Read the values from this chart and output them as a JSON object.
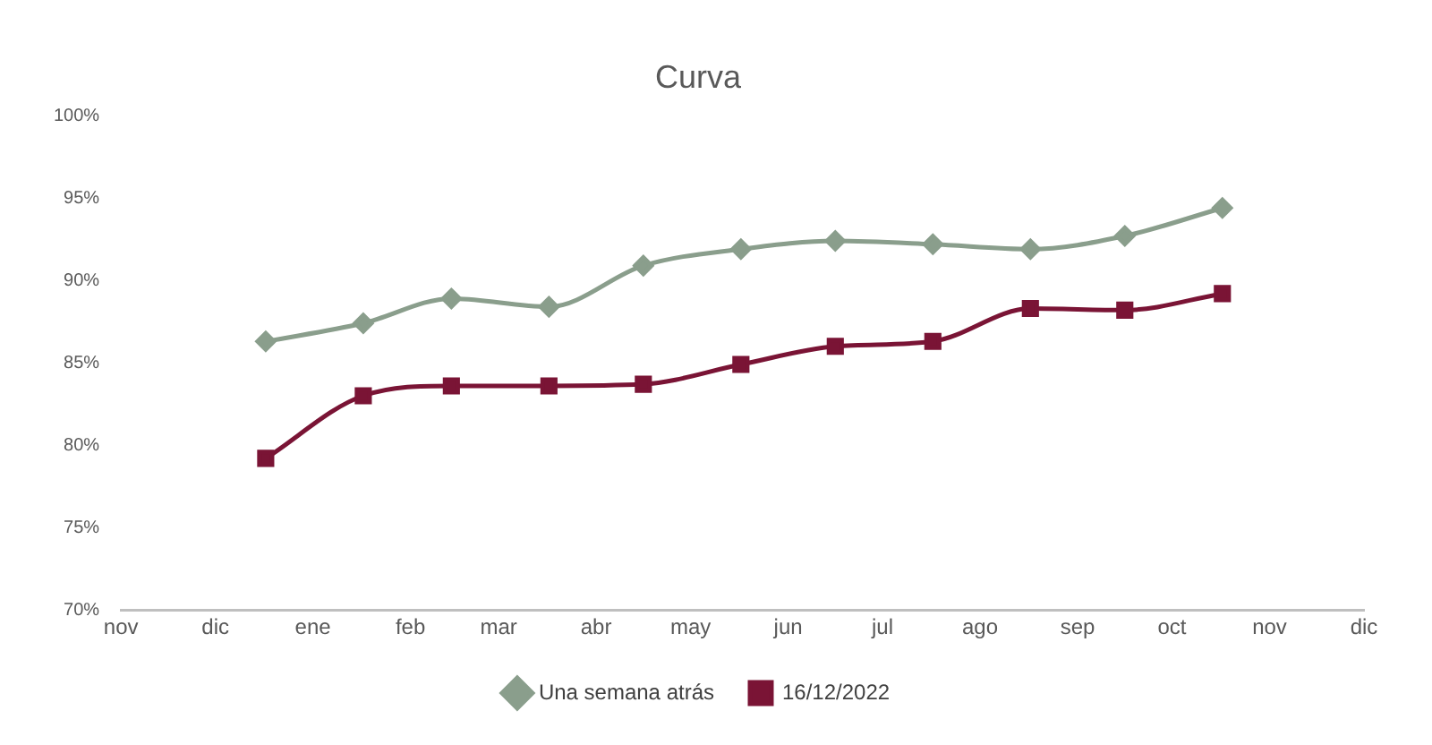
{
  "chart_data": {
    "type": "line",
    "title": "Curva",
    "xlim": [
      "2022-11-15",
      "2023-12-15"
    ],
    "xticks": [
      {
        "value": "2022-11-15",
        "label": "nov"
      },
      {
        "value": "2022-12-15",
        "label": "dic"
      },
      {
        "value": "2023-01-15",
        "label": "ene"
      },
      {
        "value": "2023-02-15",
        "label": "feb"
      },
      {
        "value": "2023-03-15",
        "label": "mar"
      },
      {
        "value": "2023-04-15",
        "label": "abr"
      },
      {
        "value": "2023-05-15",
        "label": "may"
      },
      {
        "value": "2023-06-15",
        "label": "jun"
      },
      {
        "value": "2023-07-15",
        "label": "jul"
      },
      {
        "value": "2023-08-15",
        "label": "ago"
      },
      {
        "value": "2023-09-15",
        "label": "sep"
      },
      {
        "value": "2023-10-15",
        "label": "oct"
      },
      {
        "value": "2023-11-15",
        "label": "nov"
      },
      {
        "value": "2023-12-15",
        "label": "dic"
      }
    ],
    "ylim": [
      70,
      100
    ],
    "yticks": [
      {
        "value": 70,
        "label": "70%"
      },
      {
        "value": 75,
        "label": "75%"
      },
      {
        "value": 80,
        "label": "80%"
      },
      {
        "value": 85,
        "label": "85%"
      },
      {
        "value": 90,
        "label": "90%"
      },
      {
        "value": 95,
        "label": "95%"
      },
      {
        "value": 100,
        "label": "100%"
      }
    ],
    "x": [
      "2022-12-31",
      "2023-01-31",
      "2023-02-28",
      "2023-03-31",
      "2023-04-30",
      "2023-05-31",
      "2023-06-30",
      "2023-07-31",
      "2023-08-31",
      "2023-09-30",
      "2023-10-31"
    ],
    "series": [
      {
        "name": "Una semana atrás",
        "color": "#8a9e8c",
        "marker": "diamond",
        "values": [
          86.3,
          87.4,
          88.9,
          88.4,
          90.9,
          91.9,
          92.4,
          92.2,
          91.9,
          92.7,
          94.4
        ]
      },
      {
        "name": "16/12/2022",
        "color": "#7a1435",
        "marker": "square",
        "values": [
          79.2,
          83.0,
          83.6,
          83.6,
          83.7,
          84.9,
          86.0,
          86.3,
          88.3,
          88.2,
          89.2
        ]
      }
    ],
    "grid": false,
    "legend": "bottom",
    "line_style": "solid"
  }
}
